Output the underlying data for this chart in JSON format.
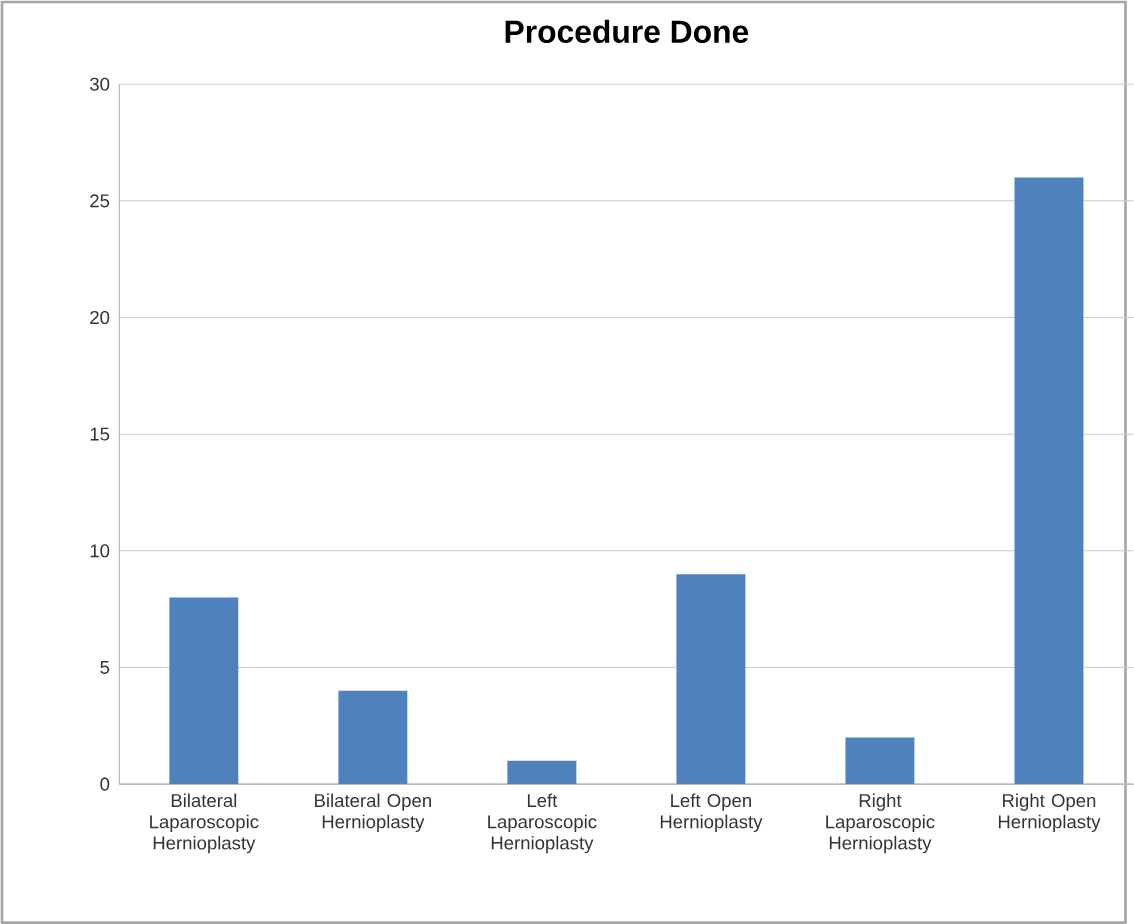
{
  "chart_data": {
    "type": "bar",
    "title": "Procedure Done",
    "categories": [
      "Bilateral Laparoscopic Hernioplasty",
      "Bilateral Open Hernioplasty",
      "Left Laparoscopic Hernioplasty",
      "Left Open Hernioplasty",
      "Right Laparoscopic Hernioplasty",
      "Right Open Hernioplasty"
    ],
    "values": [
      8,
      4,
      1,
      9,
      2,
      26
    ],
    "color": "#4f81bd",
    "ylim": [
      0,
      30
    ],
    "yticks": [
      0,
      5,
      10,
      15,
      20,
      25,
      30
    ],
    "grid": "y"
  }
}
